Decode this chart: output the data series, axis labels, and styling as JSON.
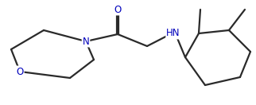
{
  "bg_color": "#ffffff",
  "bond_color": "#2a2a2a",
  "atom_colors": {
    "O": "#0000bb",
    "N": "#0000bb",
    "H": "#0000bb"
  },
  "figsize": [
    3.22,
    1.32
  ],
  "dpi": 100,
  "lw": 1.6
}
